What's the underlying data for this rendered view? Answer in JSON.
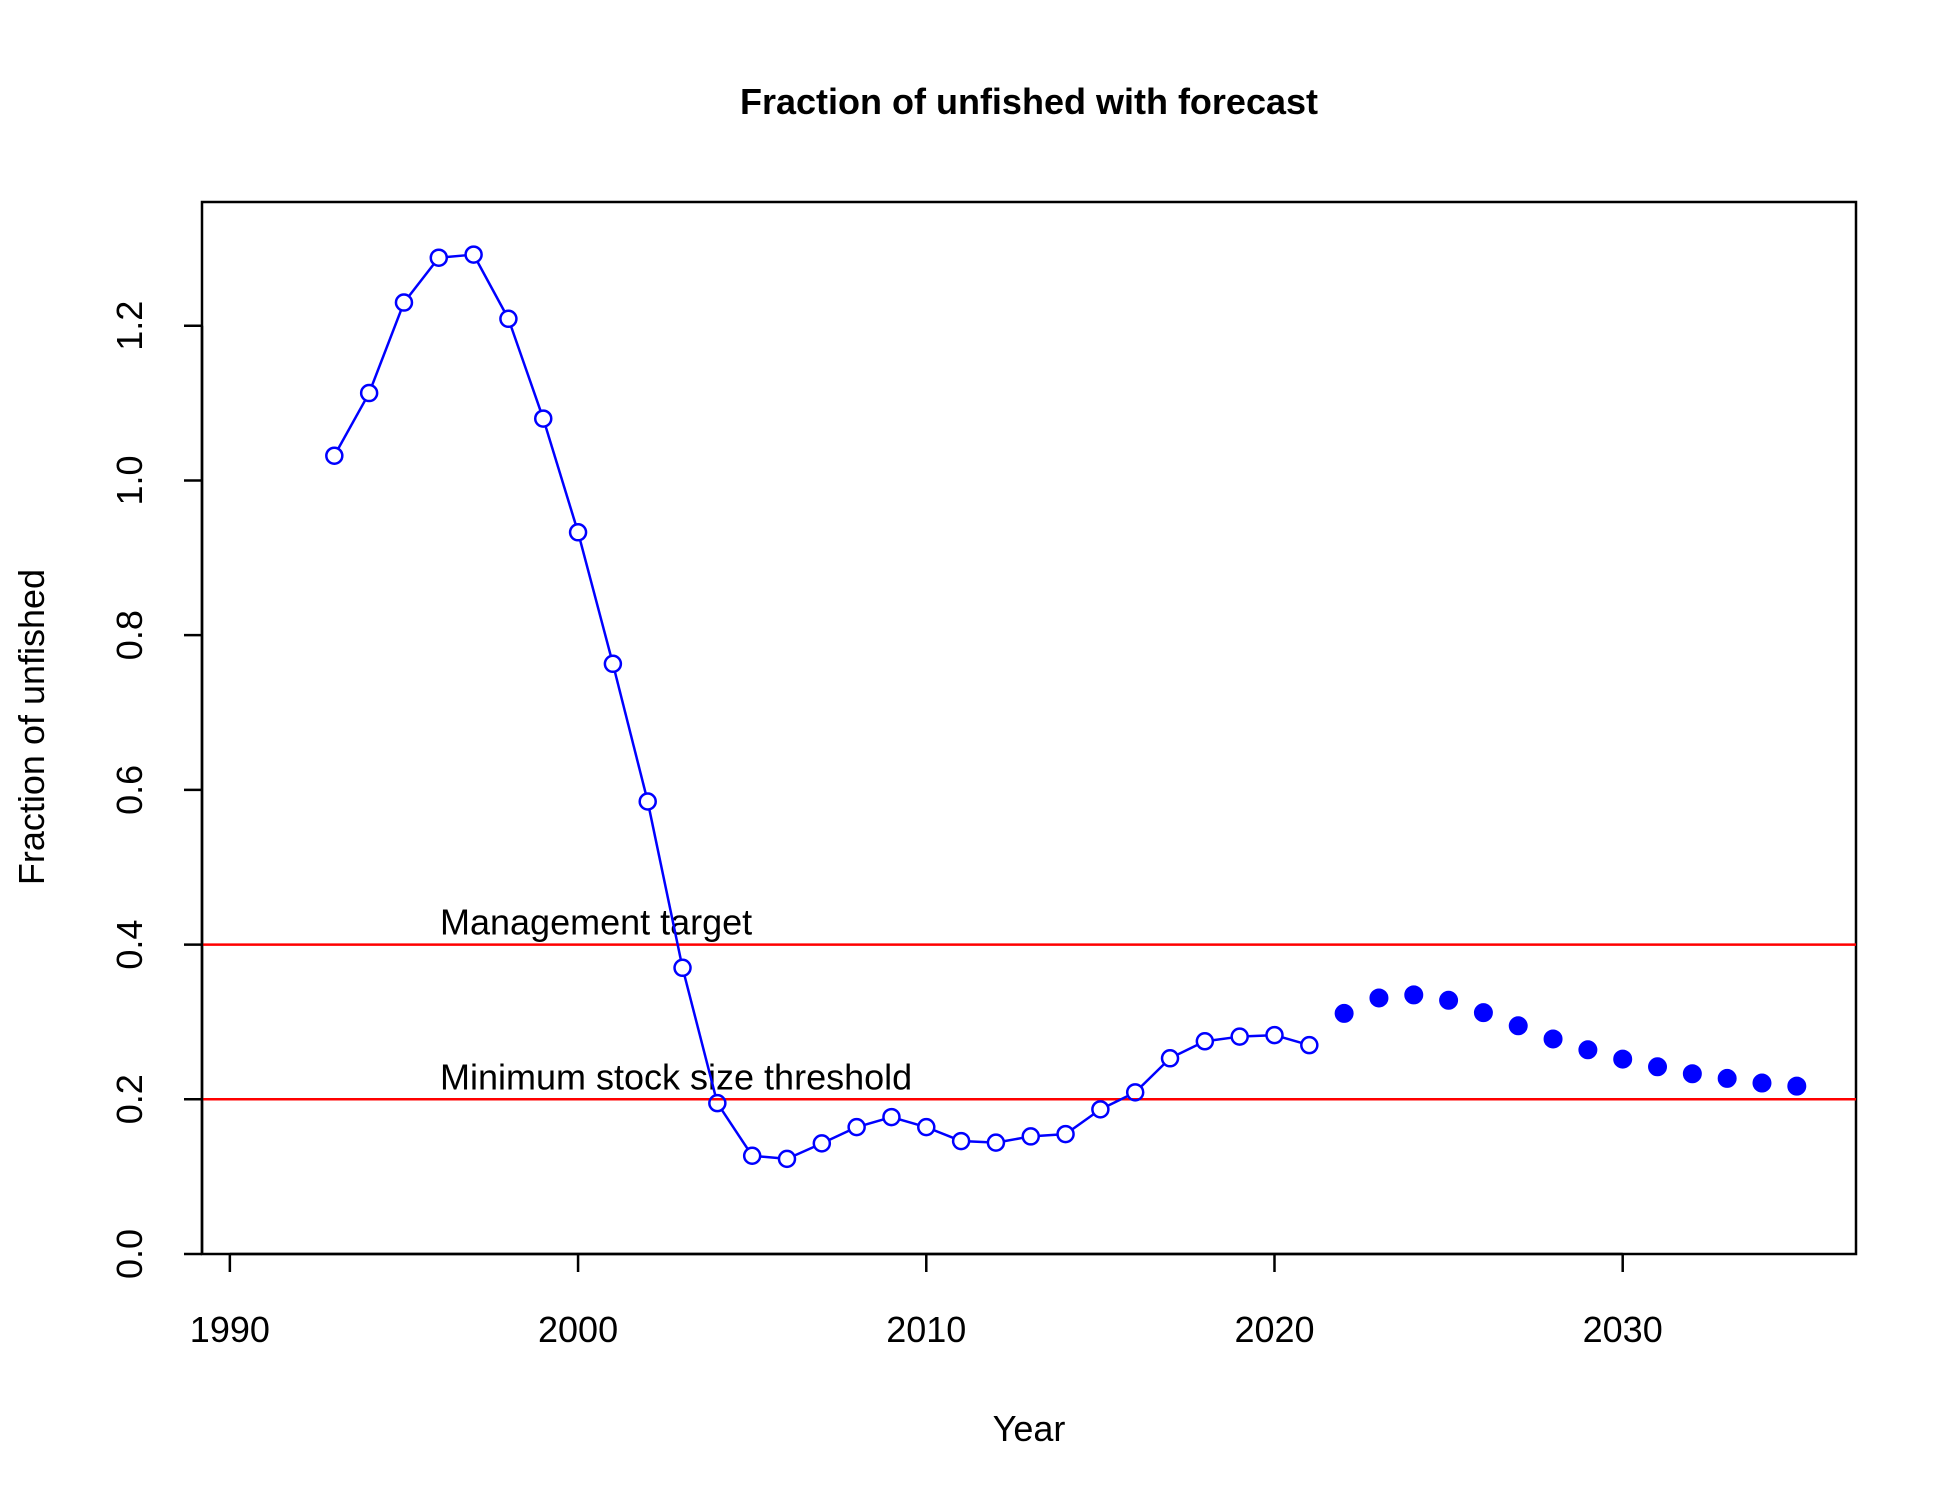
{
  "chart_data": {
    "type": "line",
    "title": "Fraction of unfished with forecast",
    "xlabel": "Year",
    "ylabel": "Fraction of unfished",
    "xlim": [
      1989.2,
      2036.7
    ],
    "ylim": [
      0.0,
      1.36
    ],
    "x_ticks": [
      "1990",
      "2000",
      "2010",
      "2020",
      "2030"
    ],
    "y_ticks": [
      "0.0",
      "0.2",
      "0.4",
      "0.6",
      "0.8",
      "1.0",
      "1.2"
    ],
    "grid": false,
    "legend": "none",
    "series": [
      {
        "style": "line-with-open-circles",
        "color": "#0000ff",
        "x": [
          1993,
          1994,
          1995,
          1996,
          1997,
          1998,
          1999,
          2000,
          2001,
          2002,
          2003,
          2004,
          2005,
          2006,
          2007,
          2008,
          2009,
          2010,
          2011,
          2012,
          2013,
          2014,
          2015,
          2016,
          2017,
          2018,
          2019,
          2020,
          2021
        ],
        "y": [
          1.032,
          1.113,
          1.23,
          1.288,
          1.292,
          1.209,
          1.08,
          0.933,
          0.763,
          0.585,
          0.37,
          0.195,
          0.127,
          0.123,
          0.143,
          0.164,
          0.177,
          0.164,
          0.146,
          0.144,
          0.152,
          0.155,
          0.187,
          0.209,
          0.253,
          0.275,
          0.281,
          0.283,
          0.27
        ]
      },
      {
        "style": "filled-points",
        "color": "#0000ff",
        "x": [
          2022,
          2023,
          2024,
          2025,
          2026,
          2027,
          2028,
          2029,
          2030,
          2031,
          2032,
          2033,
          2034,
          2035
        ],
        "y": [
          0.311,
          0.331,
          0.335,
          0.328,
          0.312,
          0.295,
          0.278,
          0.264,
          0.252,
          0.242,
          0.233,
          0.227,
          0.221,
          0.217
        ]
      }
    ],
    "reference_lines": [
      {
        "y": 0.4,
        "label": "Management target",
        "color": "#ff0000"
      },
      {
        "y": 0.2,
        "label": "Minimum stock size threshold",
        "color": "#ff0000"
      }
    ]
  }
}
